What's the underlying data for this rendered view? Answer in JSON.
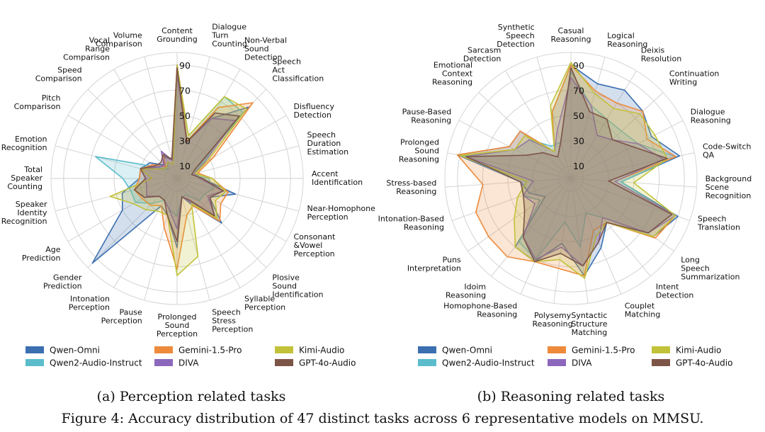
{
  "figure_caption": "Figure 4: Accuracy distribution of 47 distinct tasks across 6 representative models on MMSU.",
  "palette": {
    "Qwen-Omni": "#3b6fb0",
    "Qwen2-Audio-Instruct": "#5bbccc",
    "Gemini-1.5-Pro": "#ee8a3c",
    "DIVA": "#8c68bc",
    "Kimi-Audio": "#c1c23a",
    "GPT-4o-Audio": "#7d5547"
  },
  "chart_data": [
    {
      "type": "radar",
      "caption": "(a) Perception related tasks",
      "r_ticks": [
        10,
        30,
        50,
        70,
        90
      ],
      "r_tick_labels": [
        "10",
        "30",
        "50",
        "70",
        "90"
      ],
      "rlim": [
        0,
        100
      ],
      "grid": true,
      "legend_position": "bottom",
      "categories": [
        "Content\nGrounding",
        "Dialogue\nTurn\nCounting",
        "Non-Verbal\nSound\nDetection",
        "Speech\nAct\nClassification",
        "Disfluency\nDetection",
        "Speech\nDuration\nEstimation",
        "Accent\nIdentification",
        "Near-Homophone\nPerception",
        "Consonant\n&Vowel\nPerception",
        "Plosive\nSound\nIdentification",
        "Syllable\nPerception",
        "Speech\nStress\nPerception",
        "Prolonged\nSound\nPerception",
        "Pause\nPerception",
        "Intonation\nPerception",
        "Gender\nPrediction",
        "Age\nPrediction",
        "Speaker\nIdentity\nRecognition",
        "Total\nSpeaker\nCounting",
        "Emotion\nRecognition",
        "Pitch\nComparison",
        "Speed\nComparison",
        "Vocal\nRange\nComparison",
        "Volume\nComparison"
      ],
      "series": [
        {
          "name": "Qwen-Omni",
          "values": [
            90,
            30,
            55,
            80,
            20,
            15,
            20,
            48,
            30,
            50,
            25,
            15,
            55,
            30,
            25,
            95,
            50,
            45,
            30,
            30,
            25,
            15,
            20,
            15
          ]
        },
        {
          "name": "Qwen2-Audio-Instruct",
          "values": [
            86,
            35,
            75,
            74,
            22,
            12,
            25,
            30,
            25,
            25,
            15,
            15,
            30,
            25,
            20,
            28,
            38,
            38,
            43,
            67,
            18,
            10,
            15,
            12
          ]
        },
        {
          "name": "Gemini-1.5-Pro",
          "values": [
            90,
            31,
            65,
            85,
            33,
            17,
            28,
            42,
            40,
            48,
            25,
            30,
            72,
            40,
            25,
            30,
            32,
            35,
            30,
            30,
            22,
            13,
            22,
            16
          ]
        },
        {
          "name": "DIVA",
          "values": [
            82,
            30,
            55,
            65,
            25,
            14,
            18,
            38,
            28,
            42,
            22,
            15,
            40,
            25,
            20,
            20,
            28,
            25,
            25,
            30,
            18,
            15,
            25,
            15
          ]
        },
        {
          "name": "Kimi-Audio",
          "values": [
            90,
            35,
            75,
            78,
            28,
            15,
            28,
            40,
            35,
            45,
            23,
            64,
            77,
            30,
            30,
            35,
            40,
            55,
            20,
            30,
            15,
            12,
            15,
            12
          ]
        },
        {
          "name": "GPT-4o-Audio",
          "values": [
            88,
            30,
            60,
            70,
            18,
            12,
            20,
            38,
            30,
            42,
            20,
            15,
            50,
            30,
            20,
            20,
            30,
            35,
            25,
            30,
            20,
            18,
            22,
            16
          ]
        }
      ]
    },
    {
      "type": "radar",
      "caption": "(b) Reasoning related tasks",
      "r_ticks": [
        10,
        30,
        50,
        70,
        90
      ],
      "r_tick_labels": [
        "10",
        "30",
        "50",
        "70",
        "90"
      ],
      "rlim": [
        0,
        100
      ],
      "grid": true,
      "legend_position": "bottom",
      "categories": [
        "Casual\nReasoning",
        "Logical\nReasoning",
        "Deixis\nResolution",
        "Continuation\nWriting",
        "Dialogue\nReasoning",
        "Code-Switch\nQA",
        "Background\nScene\nRecognition",
        "Speech\nTranslation",
        "Long\nSpeech\nSummarization",
        "Intent\nDetection",
        "Couplet\nMatching",
        "Syntactic\nStructure\nMatching",
        "Polysemy\nReasoning",
        "Homophone-Based\nReasoning",
        "Idoim\nReasoning",
        "Puns\nInterpretation",
        "Intonation-Based\nReasoning",
        "Stress-based\nReasoning",
        "Prolonged\nSound\nReasoning",
        "Pause-Based\nReasoning",
        "Emotional\nContext\nReasoning",
        "Sarcasm\nDetection",
        "Synthetic\nSpeech\nDetection"
      ],
      "series": [
        {
          "name": "Qwen-Omni",
          "values": [
            90,
            78,
            82,
            78,
            72,
            88,
            40,
            90,
            80,
            45,
            60,
            78,
            52,
            72,
            70,
            25,
            35,
            40,
            92,
            55,
            55,
            25,
            55
          ]
        },
        {
          "name": "Qwen2-Audio-Instruct",
          "values": [
            85,
            60,
            55,
            55,
            60,
            85,
            40,
            85,
            75,
            40,
            30,
            55,
            35,
            70,
            65,
            30,
            40,
            40,
            88,
            50,
            45,
            30,
            30
          ]
        },
        {
          "name": "Gemini-1.5-Pro",
          "values": [
            90,
            72,
            70,
            78,
            68,
            85,
            35,
            88,
            82,
            45,
            45,
            78,
            72,
            72,
            80,
            80,
            80,
            70,
            92,
            55,
            55,
            25,
            55
          ]
        },
        {
          "name": "DIVA",
          "values": [
            80,
            60,
            40,
            45,
            60,
            75,
            35,
            88,
            75,
            40,
            55,
            70,
            55,
            70,
            60,
            35,
            40,
            30,
            85,
            50,
            45,
            25,
            40
          ]
        },
        {
          "name": "Kimi-Audio",
          "values": [
            92,
            70,
            65,
            75,
            75,
            78,
            50,
            88,
            80,
            45,
            50,
            80,
            65,
            72,
            70,
            55,
            45,
            35,
            90,
            50,
            50,
            25,
            60
          ]
        },
        {
          "name": "GPT-4o-Audio",
          "values": [
            88,
            55,
            55,
            45,
            55,
            78,
            30,
            85,
            75,
            45,
            55,
            70,
            60,
            72,
            60,
            45,
            40,
            40,
            85,
            40,
            30,
            20,
            30
          ]
        }
      ]
    }
  ]
}
